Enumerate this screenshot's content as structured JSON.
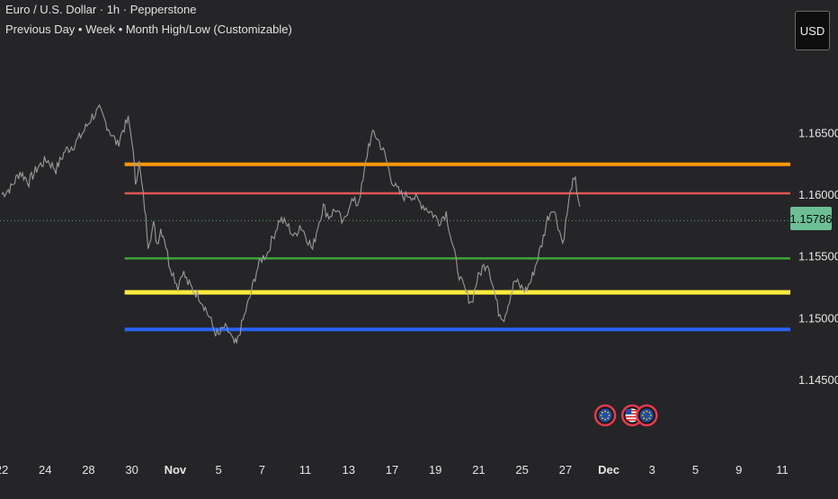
{
  "header": {
    "symbol_line": "Euro / U.S. Dollar · 1h · Pepperstone",
    "indicator_line": "Previous Day • Week • Month High/Low (Customizable)",
    "currency_button": "USD"
  },
  "price_axis": {
    "current_price_label": "1.15786",
    "current_price": 1.15786,
    "current_price_color": "#6cbf95"
  },
  "colors": {
    "background": "#252527",
    "price_line": "#9a9a9a"
  },
  "chart_data": {
    "type": "line",
    "ylim": [
      1.1415,
      1.1715
    ],
    "y_ticks": [
      {
        "value": 1.165,
        "label": "1.16500"
      },
      {
        "value": 1.16,
        "label": "1.16000"
      },
      {
        "value": 1.155,
        "label": "1.15500"
      },
      {
        "value": 1.15,
        "label": "1.15000"
      },
      {
        "value": 1.145,
        "label": "1.14500"
      }
    ],
    "x_ticks": [
      {
        "label": "22",
        "index": 0,
        "bold": false
      },
      {
        "label": "24",
        "index": 48,
        "bold": false
      },
      {
        "label": "28",
        "index": 96,
        "bold": false
      },
      {
        "label": "30",
        "index": 144,
        "bold": false
      },
      {
        "label": "Nov",
        "index": 192,
        "bold": true
      },
      {
        "label": "5",
        "index": 240,
        "bold": false
      },
      {
        "label": "7",
        "index": 288,
        "bold": false
      },
      {
        "label": "11",
        "index": 336,
        "bold": false
      },
      {
        "label": "13",
        "index": 384,
        "bold": false
      },
      {
        "label": "17",
        "index": 432,
        "bold": false
      },
      {
        "label": "19",
        "index": 480,
        "bold": false
      },
      {
        "label": "21",
        "index": 528,
        "bold": false
      },
      {
        "label": "25",
        "index": 576,
        "bold": false
      },
      {
        "label": "27",
        "index": 624,
        "bold": false
      },
      {
        "label": "Dec",
        "index": 672,
        "bold": true
      },
      {
        "label": "3",
        "index": 720,
        "bold": false
      },
      {
        "label": "5",
        "index": 768,
        "bold": false
      },
      {
        "label": "9",
        "index": 816,
        "bold": false
      },
      {
        "label": "11",
        "index": 864,
        "bold": false
      }
    ],
    "series": [
      {
        "points": [
          [
            0,
            1.16
          ],
          [
            10,
            1.1605
          ],
          [
            20,
            1.1618
          ],
          [
            30,
            1.161
          ],
          [
            40,
            1.1622
          ],
          [
            50,
            1.1628
          ],
          [
            60,
            1.162
          ],
          [
            70,
            1.1635
          ],
          [
            80,
            1.164
          ],
          [
            90,
            1.165
          ],
          [
            100,
            1.1663
          ],
          [
            108,
            1.1668
          ],
          [
            115,
            1.1658
          ],
          [
            122,
            1.1648
          ],
          [
            128,
            1.164
          ],
          [
            134,
            1.1652
          ],
          [
            140,
            1.166
          ],
          [
            144,
            1.1645
          ],
          [
            148,
            1.161
          ],
          [
            152,
            1.1625
          ],
          [
            158,
            1.159
          ],
          [
            162,
            1.156
          ],
          [
            168,
            1.1575
          ],
          [
            172,
            1.156
          ],
          [
            176,
            1.1572
          ],
          [
            180,
            1.1565
          ],
          [
            185,
            1.1545
          ],
          [
            190,
            1.1535
          ],
          [
            195,
            1.1525
          ],
          [
            200,
            1.1538
          ],
          [
            206,
            1.1528
          ],
          [
            212,
            1.1522
          ],
          [
            218,
            1.1518
          ],
          [
            224,
            1.151
          ],
          [
            230,
            1.15
          ],
          [
            235,
            1.149
          ],
          [
            240,
            1.1485
          ],
          [
            246,
            1.1492
          ],
          [
            252,
            1.1488
          ],
          [
            256,
            1.148
          ],
          [
            260,
            1.1478
          ],
          [
            264,
            1.149
          ],
          [
            270,
            1.1505
          ],
          [
            276,
            1.152
          ],
          [
            282,
            1.1538
          ],
          [
            288,
            1.1548
          ],
          [
            294,
            1.1552
          ],
          [
            300,
            1.1565
          ],
          [
            308,
            1.158
          ],
          [
            316,
            1.1575
          ],
          [
            324,
            1.1565
          ],
          [
            330,
            1.1575
          ],
          [
            336,
            1.1568
          ],
          [
            344,
            1.1555
          ],
          [
            350,
            1.1575
          ],
          [
            356,
            1.159
          ],
          [
            362,
            1.1582
          ],
          [
            370,
            1.1588
          ],
          [
            378,
            1.1575
          ],
          [
            386,
            1.1595
          ],
          [
            394,
            1.1592
          ],
          [
            400,
            1.161
          ],
          [
            406,
            1.164
          ],
          [
            412,
            1.165
          ],
          [
            418,
            1.1642
          ],
          [
            424,
            1.1632
          ],
          [
            430,
            1.1615
          ],
          [
            436,
            1.1605
          ],
          [
            444,
            1.1598
          ],
          [
            452,
            1.16
          ],
          [
            460,
            1.1595
          ],
          [
            468,
            1.159
          ],
          [
            476,
            1.1585
          ],
          [
            484,
            1.1578
          ],
          [
            492,
            1.1585
          ],
          [
            498,
            1.1562
          ],
          [
            503,
            1.1545
          ],
          [
            508,
            1.153
          ],
          [
            514,
            1.152
          ],
          [
            520,
            1.1512
          ],
          [
            526,
            1.153
          ],
          [
            532,
            1.154
          ],
          [
            538,
            1.1545
          ],
          [
            544,
            1.1525
          ],
          [
            550,
            1.1505
          ],
          [
            556,
            1.15
          ],
          [
            562,
            1.1515
          ],
          [
            568,
            1.153
          ],
          [
            574,
            1.1525
          ],
          [
            580,
            1.1522
          ],
          [
            586,
            1.153
          ],
          [
            592,
            1.1545
          ],
          [
            598,
            1.156
          ],
          [
            604,
            1.158
          ],
          [
            610,
            1.159
          ],
          [
            616,
            1.1575
          ],
          [
            621,
            1.156
          ],
          [
            626,
            1.1585
          ],
          [
            631,
            1.1608
          ],
          [
            635,
            1.161
          ],
          [
            640,
            1.159
          ]
        ]
      }
    ],
    "horizontal_levels": [
      {
        "value": 1.16242,
        "color": "#ff9800",
        "width": 4
      },
      {
        "value": 1.16007,
        "color": "#e05555",
        "width": 2.5
      },
      {
        "value": 1.1548,
        "color": "#3aa53a",
        "width": 2.5
      },
      {
        "value": 1.15205,
        "color": "#ffeb3b",
        "width": 5
      },
      {
        "value": 1.14905,
        "color": "#2962ff",
        "width": 4
      }
    ],
    "level_start_index": 136,
    "current_price_line": {
      "value": 1.15786,
      "color": "#6cbf95"
    },
    "event_markers": [
      {
        "index": 668,
        "flag": "eu-flag-icon"
      },
      {
        "index": 698,
        "flag": "us-flag-icon"
      },
      {
        "index": 714,
        "flag": "eu-flag-icon"
      }
    ]
  }
}
